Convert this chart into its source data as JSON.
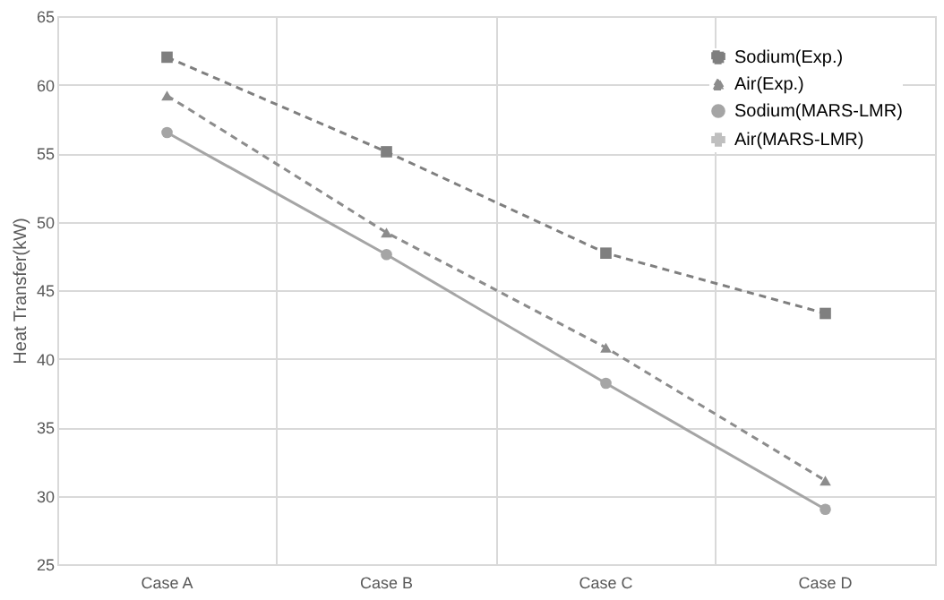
{
  "chart_data": {
    "type": "line",
    "ylabel": "Heat Transfer(kW)",
    "categories": [
      "Case A",
      "Case B",
      "Case C",
      "Case D"
    ],
    "series": [
      {
        "name": "Sodium(Exp.)",
        "color": "#7f7f7f",
        "marker": "square",
        "line_style": "dashed",
        "values": [
          62.0,
          55.1,
          47.7,
          43.3
        ]
      },
      {
        "name": "Air(Exp.)",
        "color": "#8c8c8c",
        "marker": "triangle",
        "line_style": "dashed",
        "values": [
          59.2,
          49.2,
          40.8,
          31.1
        ]
      },
      {
        "name": "Sodium(MARS-LMR)",
        "color": "#a5a5a5",
        "marker": "circle",
        "line_style": "solid",
        "values": [
          56.5,
          47.6,
          38.2,
          29.0
        ]
      },
      {
        "name": "Air(MARS-LMR)",
        "color": "#bfbfbf",
        "marker": "cross",
        "line_style": "solid",
        "values": [
          null,
          null,
          null,
          null
        ]
      }
    ],
    "ylim": [
      25,
      65
    ],
    "yticks": [
      25,
      30,
      35,
      40,
      45,
      50,
      55,
      60,
      65
    ],
    "grid": true,
    "legend": "top right"
  }
}
